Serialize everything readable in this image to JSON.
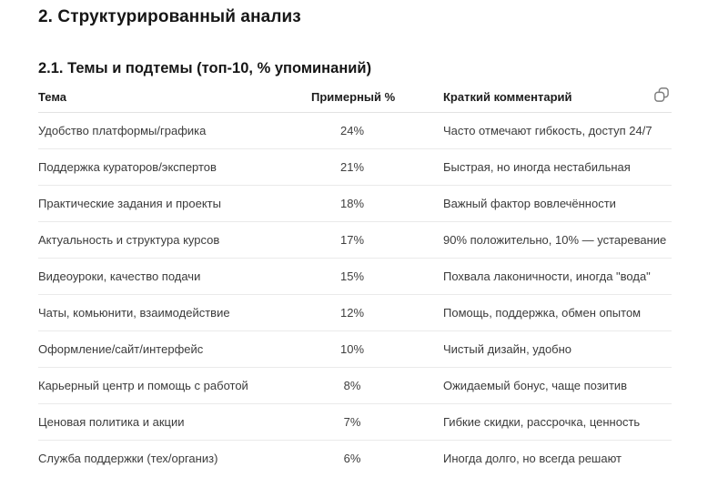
{
  "page": {
    "section_title": "2. Структурированный анализ",
    "subsection_title": "2.1. Темы и подтемы (топ-10, % упоминаний)"
  },
  "table": {
    "headers": [
      "Тема",
      "Примерный %",
      "Краткий комментарий"
    ],
    "rows": [
      {
        "topic": "Удобство платформы/графика",
        "percent": "24%",
        "comment": "Часто отмечают гибкость, доступ 24/7"
      },
      {
        "topic": "Поддержка кураторов/экспертов",
        "percent": "21%",
        "comment": "Быстрая, но иногда нестабильная"
      },
      {
        "topic": "Практические задания и проекты",
        "percent": "18%",
        "comment": "Важный фактор вовлечённости"
      },
      {
        "topic": "Актуальность и структура курсов",
        "percent": "17%",
        "comment": "90% положительно, 10% — устаревание"
      },
      {
        "topic": "Видеоуроки, качество подачи",
        "percent": "15%",
        "comment": "Похвала лаконичности, иногда \"вода\""
      },
      {
        "topic": "Чаты, комьюнити, взаимодействие",
        "percent": "12%",
        "comment": "Помощь, поддержка, обмен опытом"
      },
      {
        "topic": "Оформление/сайт/интерфейс",
        "percent": "10%",
        "comment": "Чистый дизайн, удобно"
      },
      {
        "topic": "Карьерный центр и помощь с работой",
        "percent": "8%",
        "comment": "Ожидаемый бонус, чаще позитив"
      },
      {
        "topic": "Ценовая политика и акции",
        "percent": "7%",
        "comment": "Гибкие скидки, рассрочка, ценность"
      },
      {
        "topic": "Служба поддержки (тех/организ)",
        "percent": "6%",
        "comment": "Иногда долго, но всегда решают"
      }
    ],
    "copy_button": {
      "icon": "copy-icon"
    }
  },
  "colors": {
    "background": "#ffffff",
    "heading_text": "#161616",
    "body_text": "#3b3b3b",
    "divider": "#eaeaea",
    "icon": "#7d7d7d"
  }
}
